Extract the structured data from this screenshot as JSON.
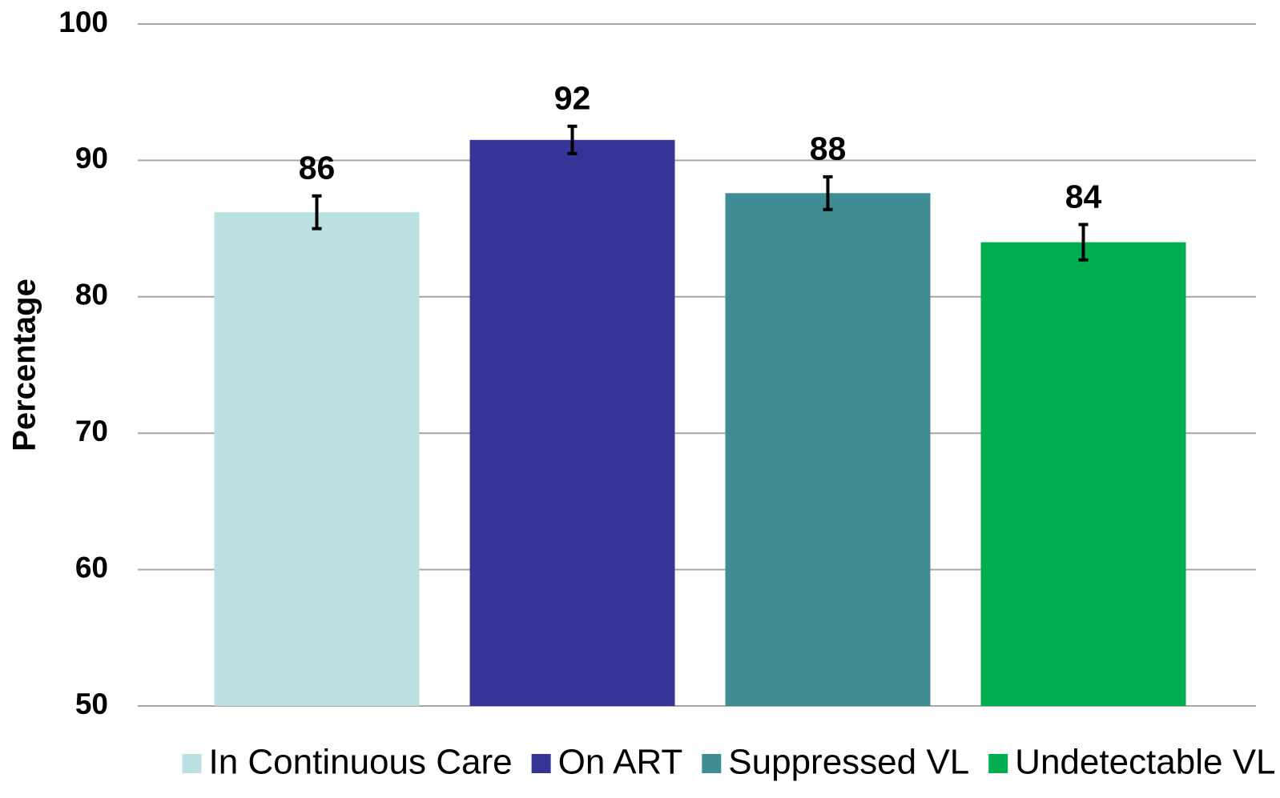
{
  "chart_data": {
    "type": "bar",
    "y_label": "Percentage",
    "ylim": [
      50,
      100
    ],
    "yticks": [
      50,
      60,
      70,
      80,
      90,
      100
    ],
    "grid": true,
    "legend": "bottom",
    "series": [
      {
        "name": "In Continuous Care",
        "color": "#bbe1e3",
        "values": [
          86.2
        ],
        "errors": [
          1.2
        ],
        "value_labels": [
          "86"
        ]
      },
      {
        "name": "On ART",
        "color": "#363497",
        "values": [
          91.5
        ],
        "errors": [
          1.0
        ],
        "value_labels": [
          "92"
        ]
      },
      {
        "name": "Suppressed VL",
        "color": "#3f8d92",
        "values": [
          87.6
        ],
        "errors": [
          1.2
        ],
        "value_labels": [
          "88"
        ]
      },
      {
        "name": "Undetectable VL",
        "color": "#00ae4f",
        "values": [
          84.0
        ],
        "errors": [
          1.3
        ],
        "value_labels": [
          "84"
        ]
      }
    ]
  }
}
